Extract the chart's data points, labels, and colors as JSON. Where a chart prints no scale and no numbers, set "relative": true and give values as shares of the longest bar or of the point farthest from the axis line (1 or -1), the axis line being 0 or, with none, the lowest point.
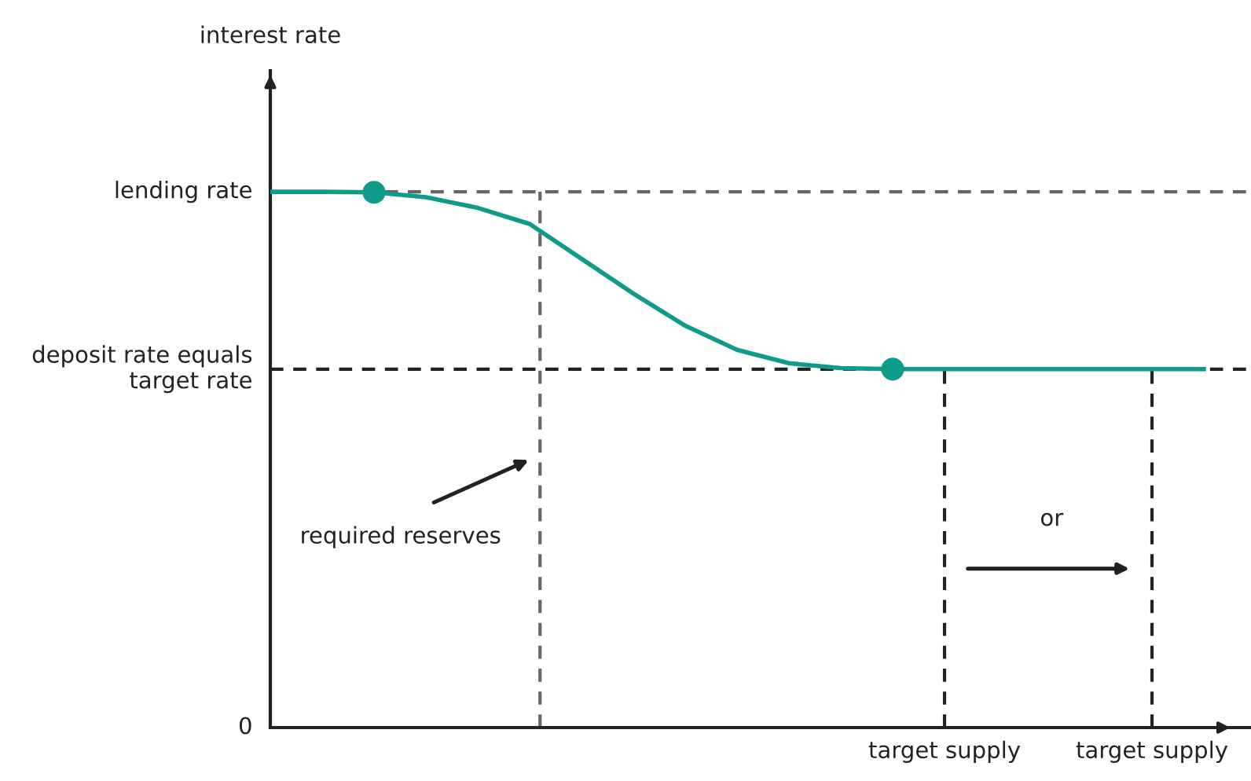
{
  "chart_data": {
    "type": "line",
    "relative": true,
    "grid": "x",
    "categories": [
      null,
      null,
      null,
      null,
      null,
      null,
      null,
      null,
      null,
      null,
      null,
      null,
      null,
      "target supply",
      null,
      null,
      null,
      "target supply",
      null
    ],
    "series": [
      {
        "color": "#0f9a8a",
        "values": [
          1,
          1,
          0.999,
          0.99,
          0.97,
          0.94,
          0.875,
          0.81,
          0.75,
          0.705,
          0.68,
          0.671,
          0.669,
          0.669,
          0.669,
          0.669,
          0.669,
          0.669,
          0.669
        ],
        "marker": "none",
        "line_style": "solid"
      },
      {
        "type": "scatter",
        "color": "#0f9a8a",
        "values": [
          null,
          null,
          0.999,
          null,
          null,
          null,
          null,
          null,
          null,
          null,
          null,
          null,
          0.669,
          null,
          null,
          null,
          null,
          null,
          null
        ],
        "marker": "circle"
      }
    ],
    "ref_lines": [
      {
        "axis": "y",
        "value": 1,
        "label": "lending rate",
        "color": "#666666",
        "line_style": "dashed"
      },
      {
        "axis": "y",
        "value": 0.669,
        "label": "deposit rate equals\ntarget rate",
        "color": "#222222",
        "line_style": "dashed"
      }
    ],
    "annotations": [
      "interest rate",
      "0",
      "required reserves",
      "or"
    ]
  }
}
